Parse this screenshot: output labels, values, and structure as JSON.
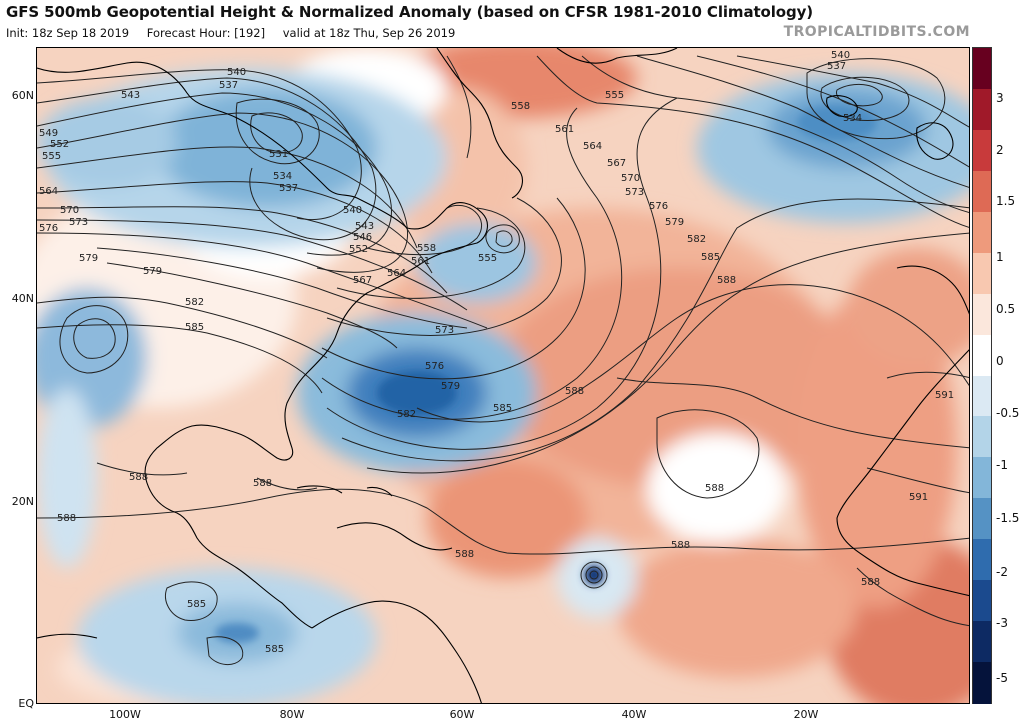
{
  "header": {
    "title": "GFS 500mb Geopotential Height & Normalized Anomaly (based on CFSR 1981-2010 Climatology)",
    "init": "Init: 18z Sep 18 2019",
    "forecast_hour": "Forecast Hour: [192]",
    "valid": "valid at 18z Thu, Sep 26 2019",
    "brand": "TROPICALTIDBITS.COM"
  },
  "axes": {
    "latitudes": [
      "60N",
      "40N",
      "20N",
      "EQ"
    ],
    "longitudes": [
      "100W",
      "80W",
      "60W",
      "40W",
      "20W"
    ]
  },
  "colorbar": {
    "labels": [
      "3",
      "2",
      "1.5",
      "1",
      "0.5",
      "0",
      "-0.5",
      "-1",
      "-1.5",
      "-2",
      "-3",
      "-5"
    ],
    "colors": [
      "#67001f",
      "#a01929",
      "#c83a3b",
      "#de6a55",
      "#ee9a7c",
      "#f8c8b0",
      "#fbe7dc",
      "#ffffff",
      "#dbe9f3",
      "#b3d4e8",
      "#83b6d9",
      "#5592c4",
      "#2f6cae",
      "#1b4a8e",
      "#0d2a63",
      "#05133b"
    ]
  },
  "contours": {
    "labels": [
      {
        "name": "540",
        "value": "540"
      },
      {
        "name": "537",
        "value": "537"
      },
      {
        "name": "543",
        "value": "543"
      },
      {
        "name": "549",
        "value": "549"
      },
      {
        "name": "552",
        "value": "552"
      },
      {
        "name": "555",
        "value": "555"
      },
      {
        "name": "531",
        "value": "531"
      },
      {
        "name": "534",
        "value": "534"
      },
      {
        "name": "537b",
        "value": "537"
      },
      {
        "name": "564",
        "value": "564"
      },
      {
        "name": "570",
        "value": "570"
      },
      {
        "name": "573",
        "value": "573"
      },
      {
        "name": "576",
        "value": "576"
      },
      {
        "name": "579",
        "value": "579"
      },
      {
        "name": "579b",
        "value": "579"
      },
      {
        "name": "582",
        "value": "582"
      },
      {
        "name": "585",
        "value": "585"
      },
      {
        "name": "540b",
        "value": "540"
      },
      {
        "name": "543b",
        "value": "543"
      },
      {
        "name": "546",
        "value": "546"
      },
      {
        "name": "552b",
        "value": "552"
      },
      {
        "name": "558",
        "value": "558"
      },
      {
        "name": "561",
        "value": "561"
      },
      {
        "name": "555b",
        "value": "555"
      },
      {
        "name": "567",
        "value": "567"
      },
      {
        "name": "564b",
        "value": "564"
      },
      {
        "name": "573b",
        "value": "573"
      },
      {
        "name": "576b",
        "value": "576"
      },
      {
        "name": "579c",
        "value": "579"
      },
      {
        "name": "582b",
        "value": "582"
      },
      {
        "name": "585b",
        "value": "585"
      },
      {
        "name": "588",
        "value": "588"
      },
      {
        "name": "558b",
        "value": "558"
      },
      {
        "name": "555c",
        "value": "555"
      },
      {
        "name": "561b",
        "value": "561"
      },
      {
        "name": "564c",
        "value": "564"
      },
      {
        "name": "567b",
        "value": "567"
      },
      {
        "name": "570b",
        "value": "570"
      },
      {
        "name": "573c",
        "value": "573"
      },
      {
        "name": "576c",
        "value": "576"
      },
      {
        "name": "579d",
        "value": "579"
      },
      {
        "name": "582c",
        "value": "582"
      },
      {
        "name": "585c",
        "value": "585"
      },
      {
        "name": "588b",
        "value": "588"
      },
      {
        "name": "540c",
        "value": "540"
      },
      {
        "name": "537c",
        "value": "537"
      },
      {
        "name": "534b",
        "value": "534"
      },
      {
        "name": "591",
        "value": "591"
      },
      {
        "name": "591b",
        "value": "591"
      },
      {
        "name": "588c",
        "value": "588"
      },
      {
        "name": "588d",
        "value": "588"
      },
      {
        "name": "588e",
        "value": "588"
      },
      {
        "name": "588f",
        "value": "588"
      },
      {
        "name": "588g",
        "value": "588"
      },
      {
        "name": "588h",
        "value": "588"
      },
      {
        "name": "588i",
        "value": "588"
      },
      {
        "name": "585d",
        "value": "585"
      },
      {
        "name": "585e",
        "value": "585"
      }
    ]
  }
}
